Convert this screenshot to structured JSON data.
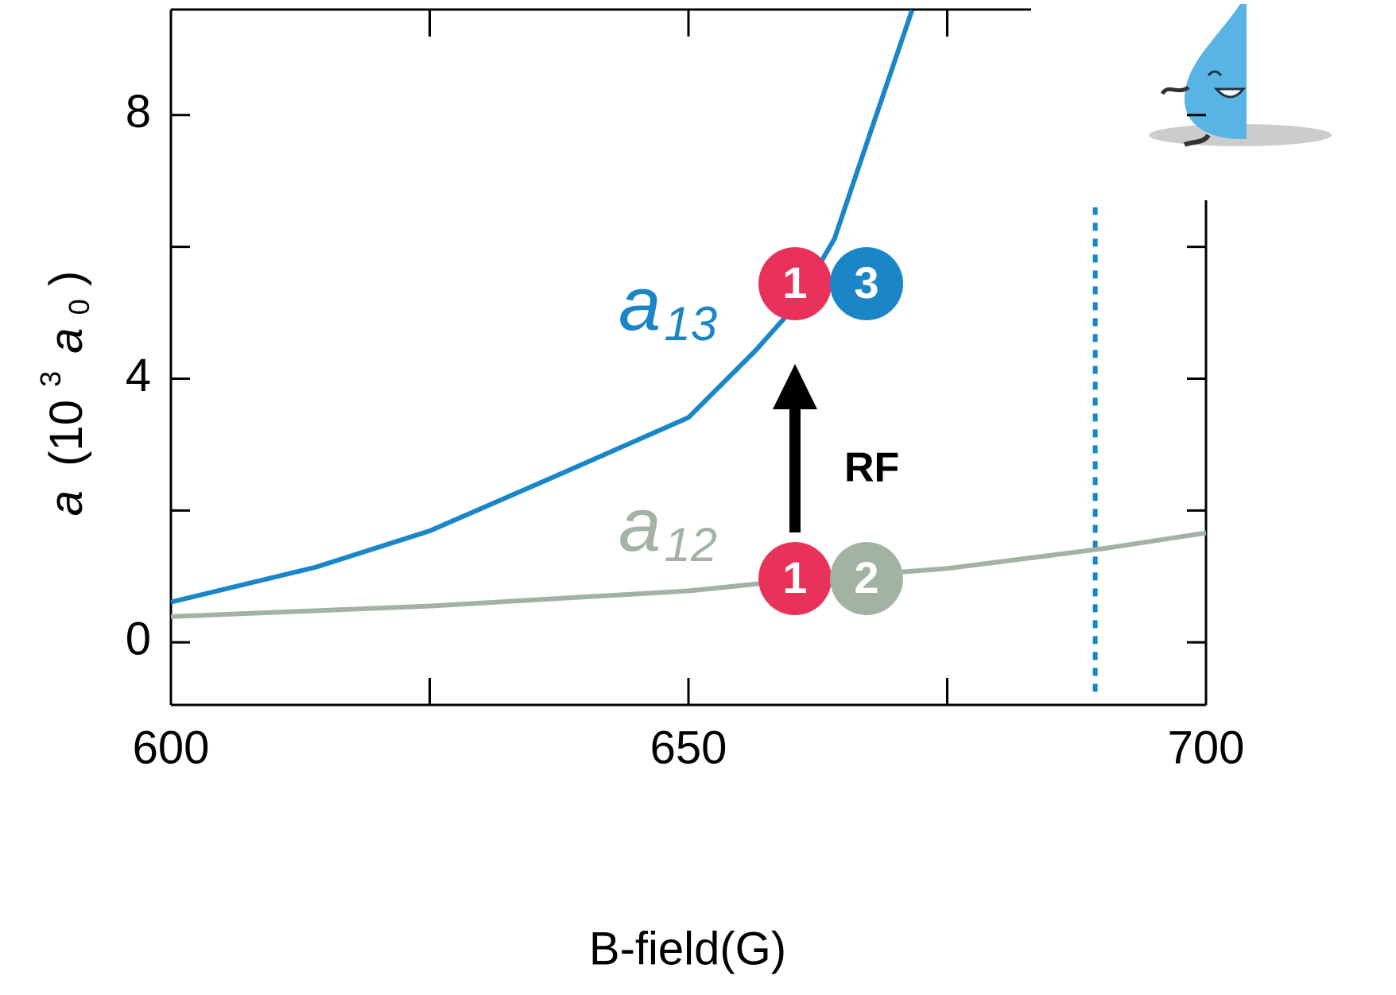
{
  "chart_data": {
    "type": "line",
    "x_label": "B-field(G)",
    "y_label": [
      "a",
      "(10",
      "3",
      "a",
      "0",
      ")"
    ],
    "xlim": [
      600,
      700
    ],
    "ylim": [
      -0.95,
      9.6
    ],
    "xticks": [
      600,
      650,
      700
    ],
    "xminor": [
      625,
      675
    ],
    "yticks": [
      0,
      4,
      8
    ],
    "yminor": [
      2,
      6
    ],
    "series": [
      {
        "name": "a",
        "sub": "13",
        "color": "#1a86c8",
        "x": [
          600,
          614,
          625,
          637,
          650,
          656.5,
          660.3,
          664.1,
          668,
          671.6
        ],
        "values": [
          0.61,
          1.14,
          1.69,
          2.51,
          3.41,
          4.43,
          5.1,
          6.12,
          7.93,
          9.59
        ]
      },
      {
        "name": "a",
        "sub": "12",
        "color": "#a3b3a3",
        "x": [
          600,
          625,
          650,
          660,
          675,
          690,
          700
        ],
        "values": [
          0.39,
          0.55,
          0.78,
          0.94,
          1.12,
          1.42,
          1.66
        ]
      }
    ],
    "resonance": {
      "x": 689.3,
      "y": [
        -0.75,
        6.6
      ],
      "color": "#1a86c8"
    },
    "pairs": [
      {
        "labels": [
          "1",
          "3"
        ],
        "colors": [
          "#e8325a",
          "#1a86c8"
        ]
      },
      {
        "labels": [
          "1",
          "2"
        ],
        "colors": [
          "#e8325a",
          "#a3b3a3"
        ]
      }
    ],
    "arrow_label": "RF"
  }
}
